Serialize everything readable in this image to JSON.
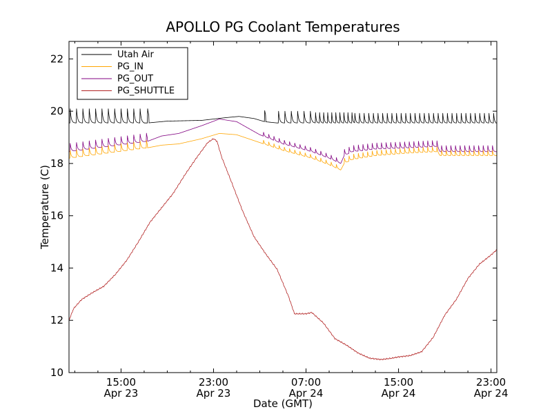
{
  "chart_data": {
    "type": "line",
    "title": "APOLLO PG Coolant Temperatures",
    "xlabel": "Date (GMT)",
    "ylabel": "Temperature (C)",
    "xlim": [
      10.5,
      47.5
    ],
    "ylim": [
      10,
      22.67
    ],
    "x_unit": "hours since Apr 23 00:00 GMT",
    "yticks": [
      10,
      12,
      14,
      16,
      18,
      20,
      22
    ],
    "xticks": [
      {
        "x": 15,
        "time": "15:00",
        "date": "Apr 23"
      },
      {
        "x": 23,
        "time": "23:00",
        "date": "Apr 23"
      },
      {
        "x": 31,
        "time": "07:00",
        "date": "Apr 24"
      },
      {
        "x": 39,
        "time": "15:00",
        "date": "Apr 24"
      },
      {
        "x": 47,
        "time": "23:00",
        "date": "Apr 24"
      }
    ],
    "legend_position": "top-left",
    "grid": false,
    "series": [
      {
        "name": "Utah Air",
        "color": "#000000",
        "baseline": {
          "x": [
            10.5,
            17.3,
            19.0,
            22.0,
            24.0,
            25.2,
            26.5,
            27.4,
            28.5,
            47.5
          ],
          "y": [
            19.55,
            19.55,
            19.62,
            19.65,
            19.75,
            19.8,
            19.72,
            19.6,
            19.55,
            19.55
          ]
        },
        "spikes": [
          {
            "start": 10.6,
            "end": 17.0,
            "period": 0.55,
            "amp": 0.55
          },
          {
            "start": 17.3,
            "end": 17.4,
            "period": 1.0,
            "amp": 0.55
          },
          {
            "start": 27.4,
            "end": 27.5,
            "period": 1.0,
            "amp": 0.5
          },
          {
            "start": 28.6,
            "end": 31.8,
            "period": 0.55,
            "amp": 0.6
          },
          {
            "start": 31.8,
            "end": 35.2,
            "period": 0.35,
            "amp": 0.62
          },
          {
            "start": 35.2,
            "end": 47.4,
            "period": 0.4,
            "amp": 0.55
          }
        ]
      },
      {
        "name": "PG_IN",
        "color": "#ffa500",
        "baseline": {
          "x": [
            10.5,
            17.3,
            18.5,
            20.0,
            22.0,
            23.5,
            25.0,
            27.0,
            29.0,
            31.5,
            33.0,
            34.0,
            34.3,
            35.0,
            37.0,
            40.0,
            42.3,
            42.6,
            47.5
          ],
          "y": [
            18.2,
            18.6,
            18.7,
            18.75,
            18.95,
            19.15,
            19.1,
            18.8,
            18.5,
            18.2,
            17.95,
            17.75,
            18.0,
            18.15,
            18.3,
            18.4,
            18.45,
            18.3,
            18.3
          ]
        },
        "spikes": [
          {
            "start": 10.6,
            "end": 17.3,
            "period": 0.55,
            "amp": 0.3
          },
          {
            "start": 27.3,
            "end": 34.0,
            "period": 0.45,
            "amp": 0.2
          },
          {
            "start": 34.3,
            "end": 47.4,
            "period": 0.4,
            "amp": 0.3
          }
        ]
      },
      {
        "name": "PG_OUT",
        "color": "#800080",
        "baseline": {
          "x": [
            10.5,
            17.3,
            18.5,
            20.0,
            22.0,
            23.5,
            25.0,
            27.0,
            29.0,
            31.5,
            33.0,
            34.0,
            34.3,
            35.0,
            37.0,
            40.0,
            42.3,
            42.6,
            47.5
          ],
          "y": [
            18.45,
            18.85,
            19.05,
            19.15,
            19.45,
            19.7,
            19.6,
            19.1,
            18.75,
            18.45,
            18.2,
            18.0,
            18.3,
            18.45,
            18.55,
            18.6,
            18.65,
            18.45,
            18.45
          ]
        },
        "spikes": [
          {
            "start": 10.6,
            "end": 17.3,
            "period": 0.55,
            "amp": 0.32
          },
          {
            "start": 27.3,
            "end": 34.0,
            "period": 0.45,
            "amp": 0.22
          },
          {
            "start": 34.3,
            "end": 47.4,
            "period": 0.4,
            "amp": 0.35
          }
        ]
      },
      {
        "name": "PG_SHUTTLE",
        "color": "#b22222",
        "baseline": {
          "x": [
            10.5,
            10.9,
            11.6,
            12.5,
            13.5,
            14.5,
            15.5,
            16.5,
            17.5,
            18.5,
            19.5,
            20.5,
            21.5,
            22.5,
            23.0,
            23.3,
            23.7,
            24.5,
            25.5,
            26.5,
            27.5,
            28.5,
            29.5,
            30.0,
            31.0,
            31.5,
            32.5,
            33.5,
            34.5,
            35.5,
            36.5,
            37.5,
            38.4,
            39.0,
            40.0,
            41.0,
            42.0,
            43.0,
            44.0,
            45.0,
            46.0,
            47.0,
            47.5
          ],
          "y": [
            12.0,
            12.45,
            12.8,
            13.05,
            13.3,
            13.75,
            14.3,
            15.0,
            15.75,
            16.3,
            16.85,
            17.55,
            18.2,
            18.8,
            18.95,
            18.85,
            18.25,
            17.35,
            16.2,
            15.2,
            14.55,
            13.95,
            12.9,
            12.25,
            12.25,
            12.3,
            11.9,
            11.3,
            11.05,
            10.75,
            10.55,
            10.5,
            10.55,
            10.6,
            10.65,
            10.8,
            11.35,
            12.2,
            12.8,
            13.6,
            14.15,
            14.5,
            14.7
          ]
        },
        "spikes": []
      }
    ]
  }
}
